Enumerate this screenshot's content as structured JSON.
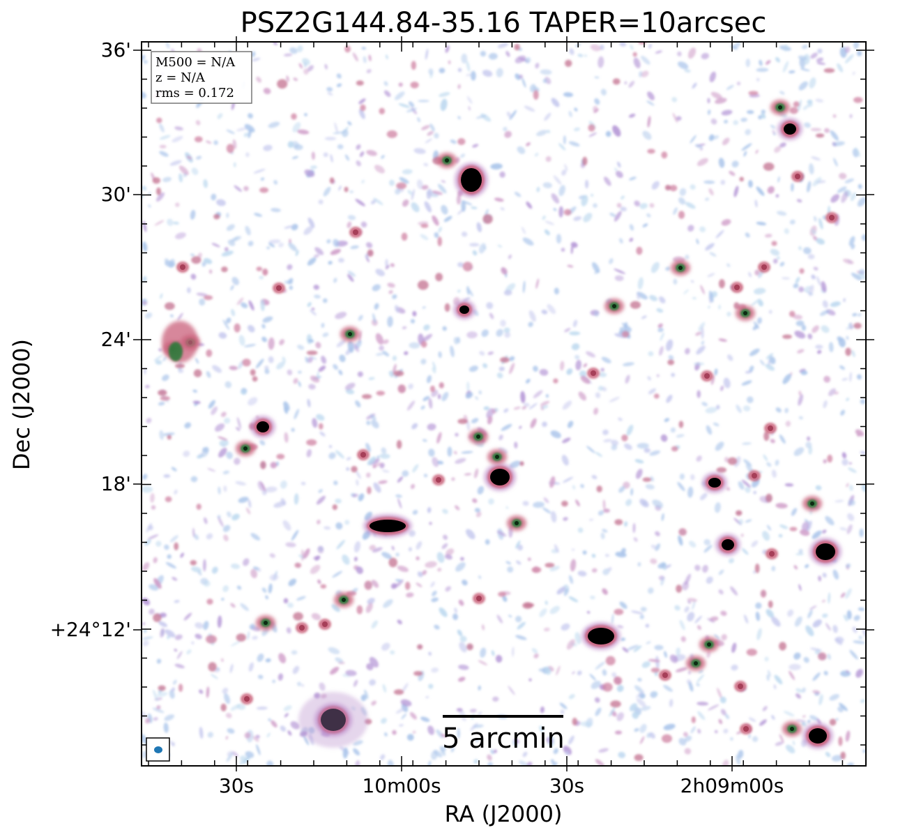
{
  "figure": {
    "title": "PSZ2G144.84-35.16 TAPER=10arcsec",
    "xlabel": "RA (J2000)",
    "ylabel": "Dec (J2000)",
    "x_ticks": [
      "30s",
      "10m00s",
      "30s",
      "2h09m00s"
    ],
    "y_ticks": [
      "36'",
      "30'",
      "24'",
      "18'",
      "+24°12'"
    ],
    "info": {
      "m500": "M500 = N/A",
      "z": "z = N/A",
      "rms": "rms = 0.172"
    },
    "scalebar_label": "5 arcmin",
    "colors": {
      "noise_blue": "#a9c4ea",
      "noise_purple": "#b597d6",
      "emission_pink": "#c9607a",
      "emission_green": "#2f7a3c",
      "core": "#000000",
      "beam": "#1f77b4"
    }
  }
}
